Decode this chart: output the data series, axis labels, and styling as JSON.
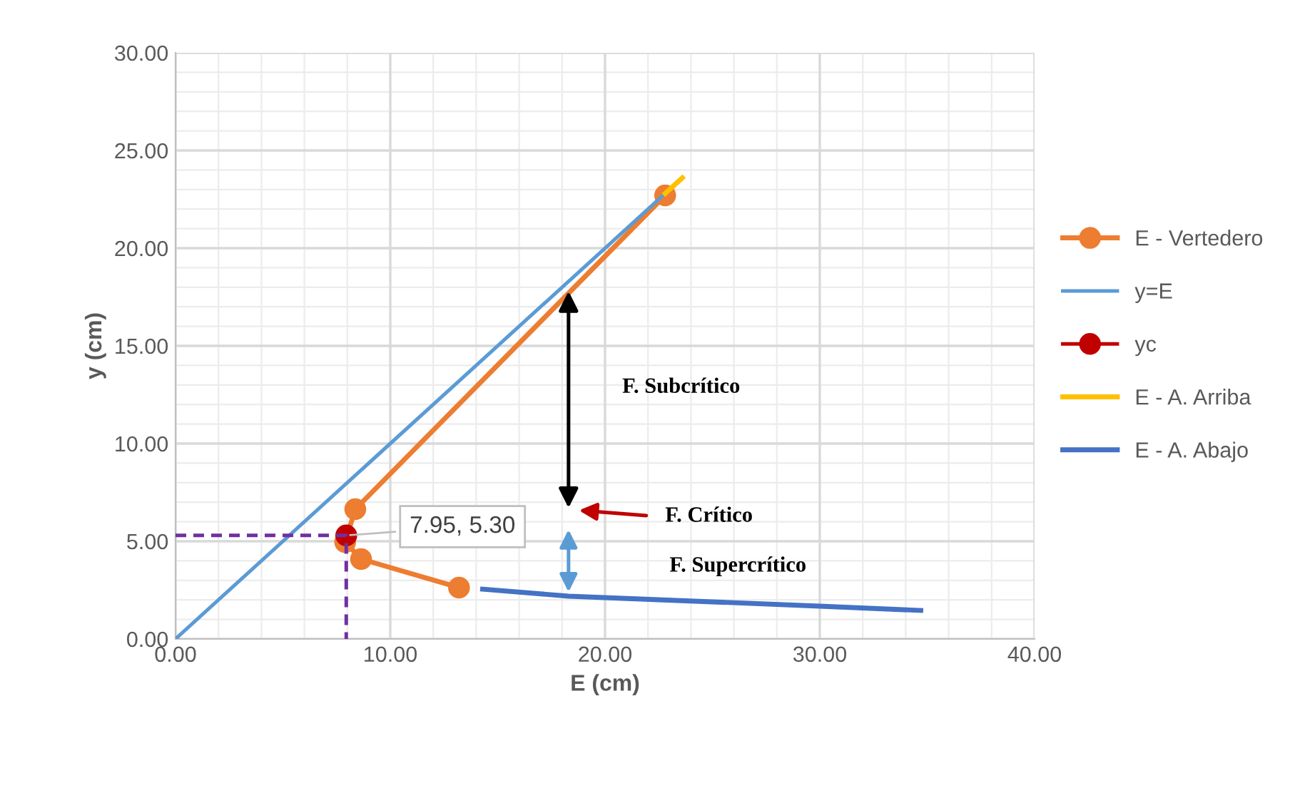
{
  "chart_data": {
    "type": "line",
    "xlabel": "E (cm)",
    "ylabel": "y (cm)",
    "xlim": [
      0,
      40
    ],
    "ylim": [
      0,
      30
    ],
    "xticks": [
      {
        "value": 0,
        "label": "0.00"
      },
      {
        "value": 10,
        "label": "10.00"
      },
      {
        "value": 20,
        "label": "20.00"
      },
      {
        "value": 30,
        "label": "30.00"
      },
      {
        "value": 40,
        "label": "40.00"
      }
    ],
    "yticks": [
      {
        "value": 0,
        "label": "0.00"
      },
      {
        "value": 5,
        "label": "5.00"
      },
      {
        "value": 10,
        "label": "10.00"
      },
      {
        "value": 15,
        "label": "15.00"
      },
      {
        "value": 20,
        "label": "20.00"
      },
      {
        "value": 25,
        "label": "25.00"
      },
      {
        "value": 30,
        "label": "30.00"
      }
    ],
    "grid": true,
    "legend": "right",
    "series": [
      {
        "name": "E - Vertedero",
        "color": "#ed7d31",
        "x": [
          22.8,
          8.37,
          7.9,
          8.64,
          13.2
        ],
        "values": [
          22.7,
          6.64,
          4.96,
          4.09,
          2.63
        ],
        "marker": "circle"
      },
      {
        "name": "y=E",
        "color": "#5b9bd5",
        "x": [
          0,
          22.8
        ],
        "values": [
          0,
          22.8
        ],
        "marker": "none"
      },
      {
        "name": "yc",
        "color": "#c00000",
        "x": [
          7.95
        ],
        "values": [
          5.3
        ],
        "marker": "circle",
        "value_labels": [
          "7.95, 5.30"
        ]
      },
      {
        "name": "E - A. Arriba",
        "color": "#ffc000",
        "x": [
          22.8,
          23.6
        ],
        "values": [
          22.8,
          23.6
        ],
        "marker": "none"
      },
      {
        "name": "E - A. Abajo",
        "color": "#4472c4",
        "x": [
          14.3,
          18.3,
          25,
          30,
          34.7
        ],
        "values": [
          2.55,
          2.19,
          1.9,
          1.68,
          1.46
        ],
        "marker": "none"
      },
      {
        "color": "#7030a0",
        "x": [
          0,
          7.95,
          7.95
        ],
        "values": [
          5.3,
          5.3,
          0
        ],
        "marker": "none",
        "line_style": "dashed"
      }
    ],
    "annotations": [
      "F. Subcrítico",
      "F. Crítico",
      "F. Supercrítico"
    ]
  }
}
